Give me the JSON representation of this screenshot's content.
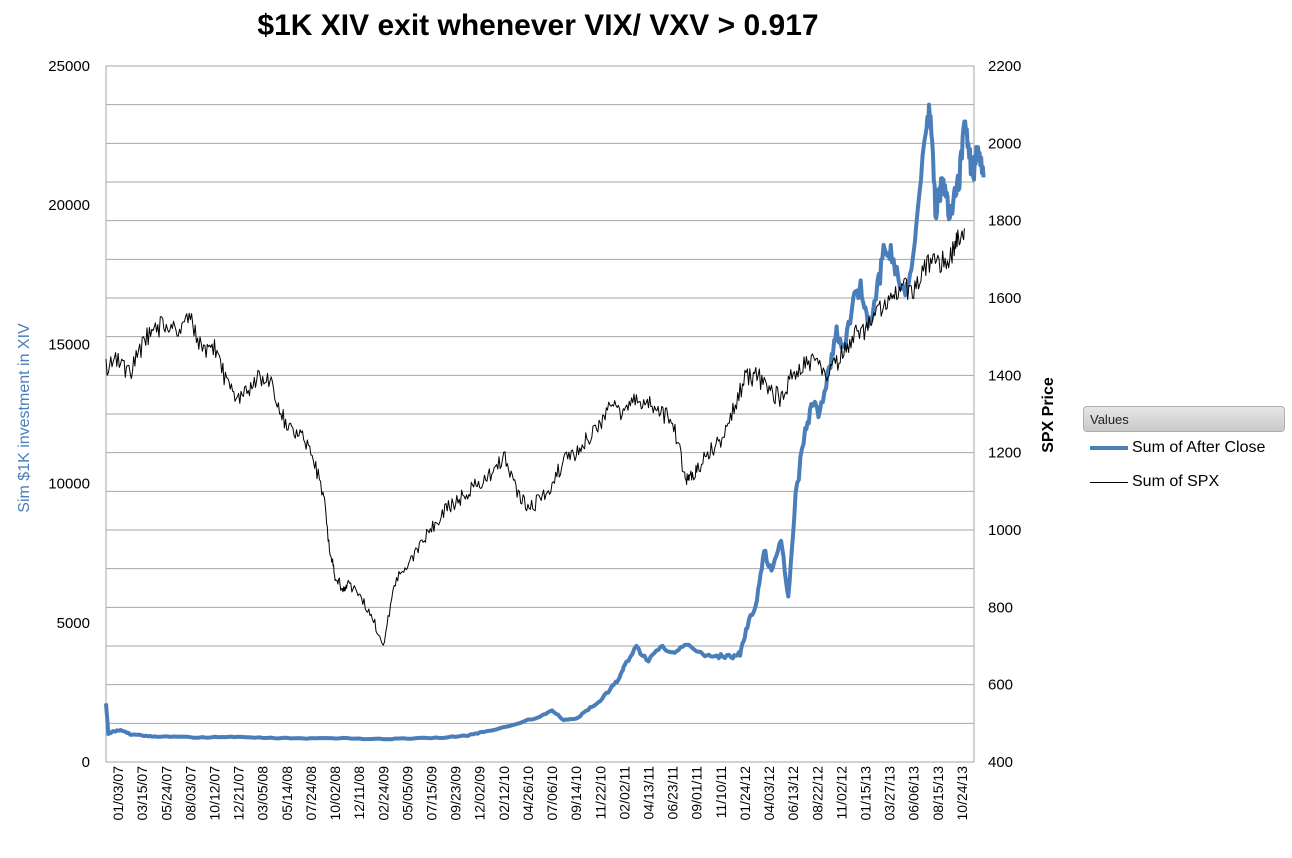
{
  "chart_data": {
    "type": "line",
    "title": "$1K XIV  exit whenever VIX/ VXV > 0.917",
    "xlabel": "",
    "ylabel_left": "Sim $1K investment in XIV",
    "ylabel_right": "SPX  Price",
    "ylim_left": [
      0,
      25000
    ],
    "ylim_right": [
      400,
      2200
    ],
    "yticks_left": [
      "0",
      "5000",
      "10000",
      "15000",
      "20000",
      "25000"
    ],
    "yticks_right": [
      "400",
      "600",
      "800",
      "1000",
      "1200",
      "1400",
      "1600",
      "1800",
      "2000",
      "2200"
    ],
    "x_tick_labels": [
      "01/03/07",
      "03/15/07",
      "05/24/07",
      "08/03/07",
      "10/12/07",
      "12/21/07",
      "03/05/08",
      "05/14/08",
      "07/24/08",
      "10/02/08",
      "12/11/08",
      "02/24/09",
      "05/05/09",
      "07/15/09",
      "09/23/09",
      "12/02/09",
      "02/12/10",
      "04/26/10",
      "07/06/10",
      "09/14/10",
      "11/22/10",
      "02/02/11",
      "04/13/11",
      "06/23/11",
      "09/01/11",
      "11/10/11",
      "01/24/12",
      "04/03/12",
      "06/13/12",
      "08/22/12",
      "11/02/12",
      "01/15/13",
      "03/27/13",
      "06/06/13",
      "08/15/13",
      "10/24/13"
    ],
    "grid": true,
    "legend_position": "right",
    "legend_header": "Values",
    "series": [
      {
        "name": "Sum of After Close",
        "axis": "left",
        "color": "#4a7ebb",
        "x_index": [
          0,
          0.1,
          0.3,
          0.6,
          1,
          1.5,
          2,
          3,
          4,
          5,
          6,
          7,
          8,
          9,
          10,
          11,
          12,
          13,
          14,
          15,
          15.5,
          16,
          17,
          18,
          18.5,
          19,
          19.5,
          20,
          20.5,
          21,
          21.3,
          21.5,
          22,
          22.5,
          23,
          23.5,
          24,
          25,
          25.5,
          26,
          26.3,
          26.6,
          27,
          27.3,
          27.6,
          28,
          28.3,
          28.6,
          29,
          29.3,
          29.6,
          30,
          30.3,
          30.6,
          31,
          31.3,
          31.6,
          32,
          32.3,
          32.6,
          33,
          33.3,
          33.6,
          34,
          34.2,
          34.4,
          34.6,
          34.8,
          35,
          35.2,
          35.4,
          35.6,
          35.8,
          36,
          36.2,
          36.4
        ],
        "values": [
          2100,
          1000,
          1100,
          1150,
          1000,
          950,
          920,
          900,
          880,
          900,
          880,
          860,
          850,
          850,
          850,
          820,
          830,
          850,
          880,
          950,
          1050,
          1150,
          1350,
          1650,
          1850,
          1500,
          1550,
          1900,
          2200,
          2700,
          3000,
          3500,
          4100,
          3600,
          4200,
          3900,
          4200,
          3800,
          3800,
          3800,
          3900,
          4900,
          5800,
          7600,
          6800,
          8000,
          5800,
          9500,
          12000,
          12800,
          12600,
          14200,
          15500,
          14800,
          16500,
          17200,
          15600,
          17000,
          18500,
          18200,
          16800,
          17200,
          19000,
          22800,
          23500,
          19800,
          20500,
          20800,
          19400,
          20600,
          21000,
          23000,
          21700,
          21200,
          22200,
          21000
        ]
      },
      {
        "name": "Sum of SPX",
        "axis": "right",
        "color": "#000000",
        "x_index": [
          0,
          0.5,
          1,
          1.5,
          2,
          2.5,
          3,
          3.5,
          4,
          4.5,
          5,
          5.5,
          6,
          6.5,
          7,
          7.5,
          8,
          8.5,
          9,
          9.3,
          9.5,
          9.8,
          10,
          10.5,
          11,
          11.5,
          12,
          12.5,
          13,
          13.5,
          14,
          14.5,
          15,
          15.5,
          16,
          16.5,
          17,
          17.5,
          18,
          18.5,
          19,
          19.5,
          20,
          20.5,
          21,
          21.5,
          22,
          22.5,
          23,
          23.5,
          24,
          24.2,
          24.5,
          25,
          25.5,
          26,
          26.5,
          27,
          27.5,
          28,
          28.5,
          29,
          29.5,
          30,
          30.5,
          31,
          31.5,
          32,
          32.5,
          33,
          33.5,
          34,
          34.5,
          35,
          35.3,
          35.6
        ],
        "values": [
          1420,
          1440,
          1400,
          1480,
          1520,
          1530,
          1510,
          1550,
          1460,
          1480,
          1380,
          1330,
          1370,
          1400,
          1360,
          1260,
          1250,
          1200,
          1100,
          940,
          880,
          850,
          860,
          830,
          780,
          700,
          870,
          900,
          960,
          1000,
          1050,
          1070,
          1100,
          1120,
          1150,
          1190,
          1110,
          1050,
          1080,
          1120,
          1180,
          1200,
          1240,
          1280,
          1320,
          1300,
          1340,
          1330,
          1300,
          1290,
          1140,
          1130,
          1160,
          1200,
          1230,
          1310,
          1390,
          1400,
          1360,
          1340,
          1410,
          1430,
          1440,
          1400,
          1450,
          1500,
          1520,
          1560,
          1600,
          1630,
          1620,
          1680,
          1690,
          1700,
          1750,
          1780
        ]
      }
    ]
  }
}
